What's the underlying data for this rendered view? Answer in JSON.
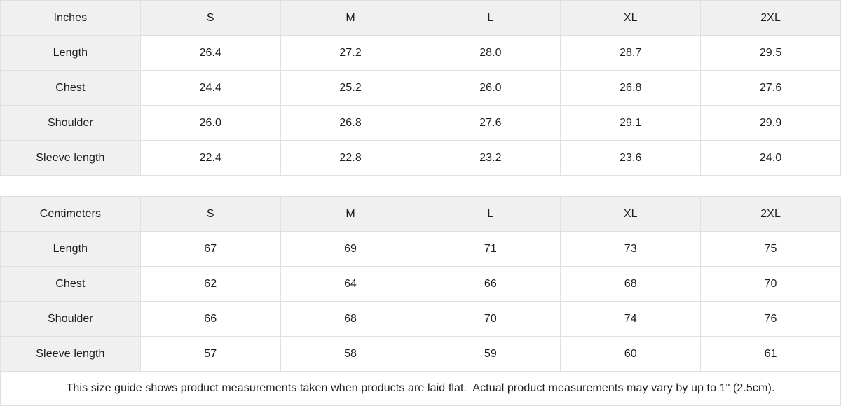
{
  "colors": {
    "header_bg": "#f0f0f0",
    "border": "#e0e0e0",
    "text": "#1d1d1f",
    "cell_bg": "#ffffff"
  },
  "chart_data": [
    {
      "type": "table",
      "title": "Inches",
      "columns": [
        "Inches",
        "S",
        "M",
        "L",
        "XL",
        "2XL"
      ],
      "rows": [
        [
          "Length",
          "26.4",
          "27.2",
          "28.0",
          "28.7",
          "29.5"
        ],
        [
          "Chest",
          "24.4",
          "25.2",
          "26.0",
          "26.8",
          "27.6"
        ],
        [
          "Shoulder",
          "26.0",
          "26.8",
          "27.6",
          "29.1",
          "29.9"
        ],
        [
          "Sleeve length",
          "22.4",
          "22.8",
          "23.2",
          "23.6",
          "24.0"
        ]
      ]
    },
    {
      "type": "table",
      "title": "Centimeters",
      "columns": [
        "Centimeters",
        "S",
        "M",
        "L",
        "XL",
        "2XL"
      ],
      "rows": [
        [
          "Length",
          "67",
          "69",
          "71",
          "73",
          "75"
        ],
        [
          "Chest",
          "62",
          "64",
          "66",
          "68",
          "70"
        ],
        [
          "Shoulder",
          "66",
          "68",
          "70",
          "74",
          "76"
        ],
        [
          "Sleeve length",
          "57",
          "58",
          "59",
          "60",
          "61"
        ]
      ]
    }
  ],
  "footer": {
    "note": "This size guide shows product measurements taken when products are laid flat.  Actual product measurements may vary by up to 1\" (2.5cm)."
  }
}
